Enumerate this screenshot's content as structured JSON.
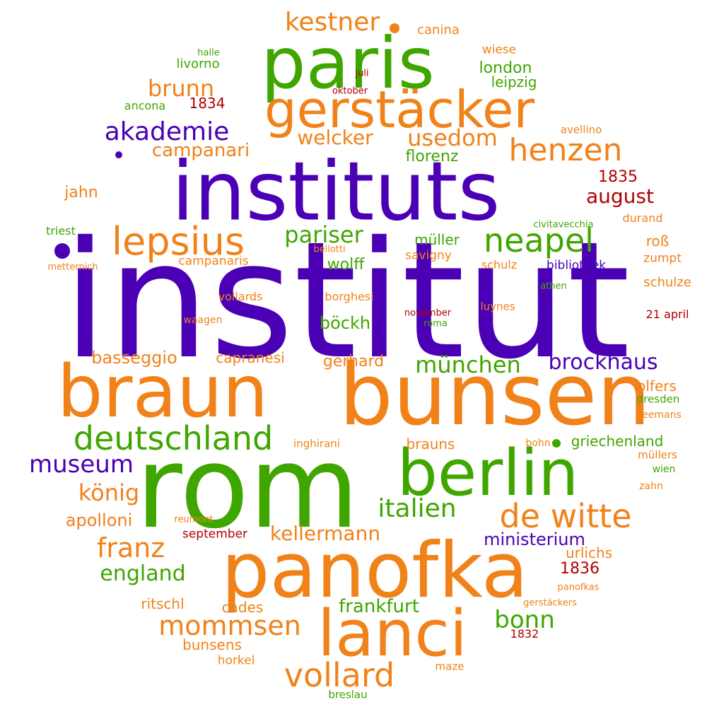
{
  "colors": {
    "purple": "#4B00B5",
    "green": "#3FA600",
    "orange": "#F08219",
    "red": "#B00000"
  },
  "words": [
    {
      "text": "institut",
      "color": "purple"
    },
    {
      "text": "instituts",
      "color": "purple"
    },
    {
      "text": "rom",
      "color": "green"
    },
    {
      "text": "bunsen",
      "color": "orange"
    },
    {
      "text": "braun",
      "color": "orange"
    },
    {
      "text": "panofka",
      "color": "orange"
    },
    {
      "text": "paris",
      "color": "green"
    },
    {
      "text": "berlin",
      "color": "green"
    },
    {
      "text": "lanci",
      "color": "orange"
    },
    {
      "text": "gerstäcker",
      "color": "orange"
    },
    {
      "text": "lepsius",
      "color": "orange"
    },
    {
      "text": "deutschland",
      "color": "green"
    },
    {
      "text": "de witte",
      "color": "orange"
    },
    {
      "text": "vollard",
      "color": "orange"
    },
    {
      "text": "neapel",
      "color": "green"
    },
    {
      "text": "henzen",
      "color": "orange"
    },
    {
      "text": "akademie",
      "color": "purple"
    },
    {
      "text": "museum",
      "color": "purple"
    },
    {
      "text": "mommsen",
      "color": "orange"
    },
    {
      "text": "italien",
      "color": "green"
    },
    {
      "text": "franz",
      "color": "orange"
    },
    {
      "text": "könig",
      "color": "orange"
    },
    {
      "text": "kestner",
      "color": "orange"
    },
    {
      "text": "brockhaus",
      "color": "purple"
    },
    {
      "text": "münchen",
      "color": "green"
    },
    {
      "text": "pariser",
      "color": "green"
    },
    {
      "text": "brunn",
      "color": "orange"
    },
    {
      "text": "usedom",
      "color": "orange"
    },
    {
      "text": "bonn",
      "color": "green"
    },
    {
      "text": "welcker",
      "color": "orange"
    },
    {
      "text": "campanari",
      "color": "orange"
    },
    {
      "text": "england",
      "color": "green"
    },
    {
      "text": "kellermann",
      "color": "orange"
    },
    {
      "text": "frankfurt",
      "color": "green"
    },
    {
      "text": "august",
      "color": "red"
    },
    {
      "text": "böckh",
      "color": "green"
    },
    {
      "text": "apolloni",
      "color": "orange"
    },
    {
      "text": "ministerium",
      "color": "purple"
    },
    {
      "text": "basseggio",
      "color": "orange"
    },
    {
      "text": "london",
      "color": "green"
    },
    {
      "text": "1835",
      "color": "red"
    },
    {
      "text": "1836",
      "color": "red"
    },
    {
      "text": "florenz",
      "color": "green"
    },
    {
      "text": "jahn",
      "color": "orange"
    },
    {
      "text": "gerhard",
      "color": "orange"
    },
    {
      "text": "wolff",
      "color": "green"
    },
    {
      "text": "müller",
      "color": "green"
    },
    {
      "text": "griechenland",
      "color": "green"
    },
    {
      "text": "brauns",
      "color": "orange"
    },
    {
      "text": "capranesi",
      "color": "orange"
    },
    {
      "text": "1834",
      "color": "red"
    },
    {
      "text": "olfers",
      "color": "orange"
    },
    {
      "text": "roß",
      "color": "orange"
    },
    {
      "text": "bunsens",
      "color": "orange"
    },
    {
      "text": "cades",
      "color": "orange"
    },
    {
      "text": "ritschl",
      "color": "orange"
    },
    {
      "text": "urlichs",
      "color": "orange"
    },
    {
      "text": "leipzig",
      "color": "green"
    },
    {
      "text": "canina",
      "color": "orange"
    },
    {
      "text": "livorno",
      "color": "green"
    },
    {
      "text": "schulze",
      "color": "orange"
    },
    {
      "text": "september",
      "color": "red"
    },
    {
      "text": "campanaris",
      "color": "orange"
    },
    {
      "text": "horkel",
      "color": "orange"
    },
    {
      "text": "bibliothek",
      "color": "purple"
    },
    {
      "text": "wiese",
      "color": "orange"
    },
    {
      "text": "zumpt",
      "color": "orange"
    },
    {
      "text": "savigny",
      "color": "orange"
    },
    {
      "text": "vollards",
      "color": "orange"
    },
    {
      "text": "borghesi",
      "color": "orange"
    },
    {
      "text": "schulz",
      "color": "orange"
    },
    {
      "text": "ancona",
      "color": "green"
    },
    {
      "text": "durand",
      "color": "orange"
    },
    {
      "text": "triest",
      "color": "green"
    },
    {
      "text": "21 april",
      "color": "red"
    },
    {
      "text": "1832",
      "color": "red"
    },
    {
      "text": "maze",
      "color": "orange"
    },
    {
      "text": "breslau",
      "color": "green"
    },
    {
      "text": "inghirani",
      "color": "orange"
    },
    {
      "text": "dresden",
      "color": "green"
    },
    {
      "text": "müllers",
      "color": "orange"
    },
    {
      "text": "avellino",
      "color": "orange"
    },
    {
      "text": "luynes",
      "color": "orange"
    },
    {
      "text": "waagen",
      "color": "orange"
    },
    {
      "text": "leemans",
      "color": "orange"
    },
    {
      "text": "wien",
      "color": "green"
    },
    {
      "text": "zahn",
      "color": "orange"
    },
    {
      "text": "bohn",
      "color": "orange"
    },
    {
      "text": "halle",
      "color": "green"
    },
    {
      "text": "juli",
      "color": "red"
    },
    {
      "text": "oktober",
      "color": "red"
    },
    {
      "text": "november",
      "color": "red"
    },
    {
      "text": "roma",
      "color": "green"
    },
    {
      "text": "civitavecchia",
      "color": "green"
    },
    {
      "text": "bellotti",
      "color": "orange"
    },
    {
      "text": "metternich",
      "color": "orange"
    },
    {
      "text": "athen",
      "color": "green"
    },
    {
      "text": "reumont",
      "color": "orange"
    },
    {
      "text": "panofkas",
      "color": "orange"
    },
    {
      "text": "gerstäckers",
      "color": "orange"
    }
  ]
}
